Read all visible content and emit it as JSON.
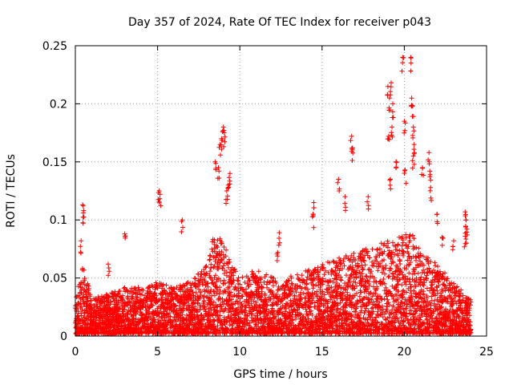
{
  "chart_data": {
    "type": "scatter",
    "title": "Day 357 of 2024, Rate Of TEC Index for receiver p043",
    "xlabel": "GPS time / hours",
    "ylabel": "ROTI / TECUs",
    "xlim": [
      0,
      25
    ],
    "ylim": [
      0,
      0.25
    ],
    "xticks": [
      0,
      5,
      10,
      15,
      20,
      25
    ],
    "xtick_labels": [
      "0",
      "5",
      "10",
      "15",
      "20",
      "25"
    ],
    "yticks": [
      0,
      0.05,
      0.1,
      0.15,
      0.2,
      0.25
    ],
    "ytick_labels": [
      "0",
      "0.05",
      "0.1",
      "0.15",
      "0.2",
      "0.25"
    ],
    "grid": true,
    "marker": "plus",
    "color": "#ff0000",
    "notable_points": [
      {
        "x": 0.45,
        "y": 0.113
      },
      {
        "x": 0.5,
        "y": 0.108
      },
      {
        "x": 0.35,
        "y": 0.082
      },
      {
        "x": 2.0,
        "y": 0.062
      },
      {
        "x": 3.0,
        "y": 0.088
      },
      {
        "x": 5.1,
        "y": 0.125
      },
      {
        "x": 5.15,
        "y": 0.122
      },
      {
        "x": 6.5,
        "y": 0.1
      },
      {
        "x": 8.5,
        "y": 0.15
      },
      {
        "x": 8.8,
        "y": 0.165
      },
      {
        "x": 8.9,
        "y": 0.17
      },
      {
        "x": 9.0,
        "y": 0.18
      },
      {
        "x": 9.05,
        "y": 0.175
      },
      {
        "x": 8.7,
        "y": 0.145
      },
      {
        "x": 9.3,
        "y": 0.13
      },
      {
        "x": 9.4,
        "y": 0.14
      },
      {
        "x": 9.2,
        "y": 0.125
      },
      {
        "x": 12.4,
        "y": 0.089
      },
      {
        "x": 12.3,
        "y": 0.072
      },
      {
        "x": 14.5,
        "y": 0.115
      },
      {
        "x": 14.45,
        "y": 0.105
      },
      {
        "x": 16.0,
        "y": 0.135
      },
      {
        "x": 16.4,
        "y": 0.12
      },
      {
        "x": 16.8,
        "y": 0.172
      },
      {
        "x": 16.85,
        "y": 0.162
      },
      {
        "x": 17.8,
        "y": 0.12
      },
      {
        "x": 19.0,
        "y": 0.215
      },
      {
        "x": 19.2,
        "y": 0.218
      },
      {
        "x": 19.1,
        "y": 0.205
      },
      {
        "x": 19.3,
        "y": 0.2
      },
      {
        "x": 19.05,
        "y": 0.172
      },
      {
        "x": 19.25,
        "y": 0.18
      },
      {
        "x": 19.15,
        "y": 0.135
      },
      {
        "x": 19.5,
        "y": 0.15
      },
      {
        "x": 19.9,
        "y": 0.24
      },
      {
        "x": 20.0,
        "y": 0.185
      },
      {
        "x": 20.05,
        "y": 0.143
      },
      {
        "x": 20.4,
        "y": 0.24
      },
      {
        "x": 20.45,
        "y": 0.205
      },
      {
        "x": 20.5,
        "y": 0.198
      },
      {
        "x": 20.55,
        "y": 0.18
      },
      {
        "x": 20.6,
        "y": 0.165
      },
      {
        "x": 20.55,
        "y": 0.155
      },
      {
        "x": 21.1,
        "y": 0.145
      },
      {
        "x": 21.5,
        "y": 0.158
      },
      {
        "x": 21.55,
        "y": 0.142
      },
      {
        "x": 21.6,
        "y": 0.128
      },
      {
        "x": 22.0,
        "y": 0.105
      },
      {
        "x": 22.3,
        "y": 0.085
      },
      {
        "x": 23.0,
        "y": 0.082
      },
      {
        "x": 23.7,
        "y": 0.107
      },
      {
        "x": 23.75,
        "y": 0.1
      },
      {
        "x": 23.8,
        "y": 0.092
      },
      {
        "x": 23.7,
        "y": 0.086
      }
    ],
    "dense_activity_profile": {
      "description_x_hours": [
        0,
        0.5,
        1,
        2,
        3,
        4,
        5,
        6,
        7,
        8,
        8.5,
        9,
        9.5,
        10,
        11,
        12,
        12.5,
        13,
        14,
        15,
        16,
        17,
        18,
        19,
        20,
        20.5,
        21,
        22,
        23,
        24
      ],
      "typical_upper_roti": [
        0.03,
        0.06,
        0.03,
        0.035,
        0.04,
        0.04,
        0.045,
        0.04,
        0.045,
        0.06,
        0.09,
        0.08,
        0.06,
        0.05,
        0.055,
        0.05,
        0.04,
        0.05,
        0.055,
        0.06,
        0.065,
        0.07,
        0.075,
        0.08,
        0.085,
        0.09,
        0.07,
        0.06,
        0.045,
        0.03
      ]
    }
  }
}
